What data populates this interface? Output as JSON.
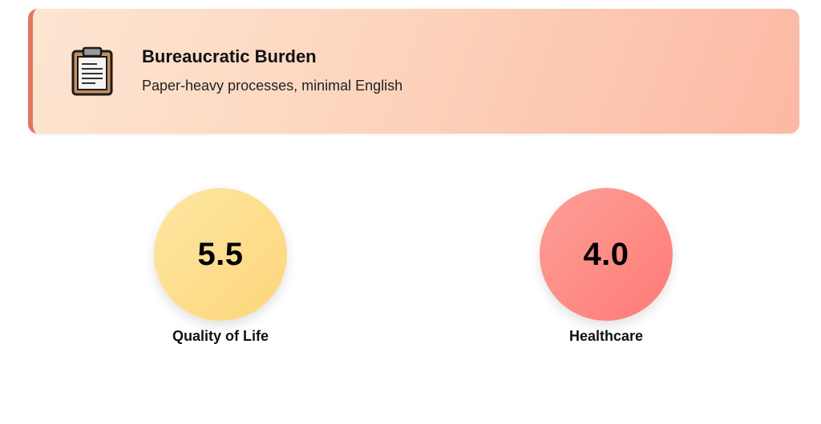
{
  "alert": {
    "icon": "clipboard-icon",
    "title": "Bureaucratic Burden",
    "subtitle": "Paper-heavy processes, minimal English",
    "accent_color": "#e2775e"
  },
  "metrics": [
    {
      "value": "5.5",
      "label": "Quality of Life",
      "color": "#fdd679"
    },
    {
      "value": "4.0",
      "label": "Healthcare",
      "color": "#ff7a76"
    }
  ]
}
